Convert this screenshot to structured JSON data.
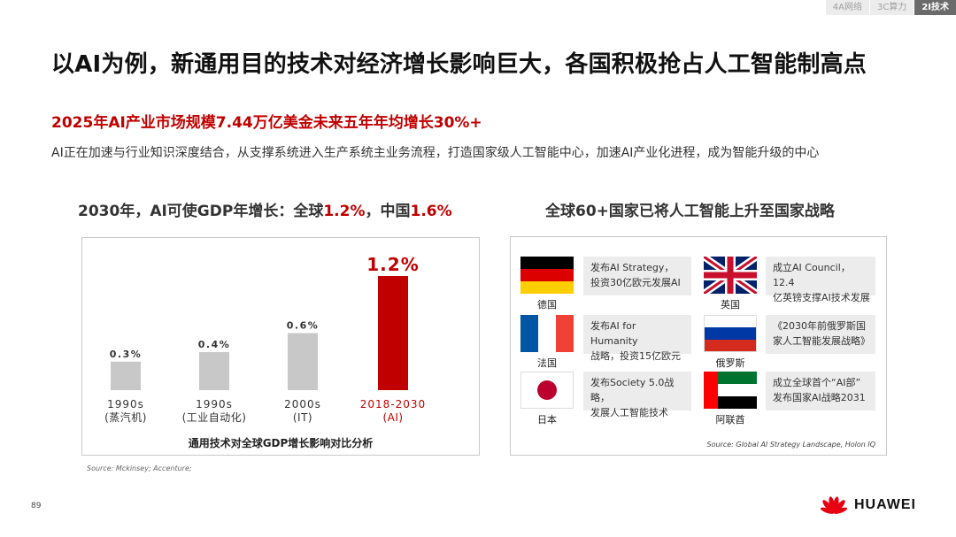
{
  "nav": {
    "tabs": [
      {
        "label": "4A网络"
      },
      {
        "label": "3C算力"
      },
      {
        "label": "2I技术"
      }
    ]
  },
  "title": "以AI为例，新通用目的技术对经济增长影响巨大，各国积极抢占人工智能制高点",
  "subtitle": "2025年AI产业市场规模7.44万亿美金未来五年年均增长30%+",
  "description": "AI正在加速与行业知识深度结合，从支撑系统进入生产系统主业务流程，打造国家级人工智能中心，加速AI产业化进程，成为智能升级的中心",
  "left": {
    "heading_prefix": "2030年，AI可使GDP年增长：全球",
    "heading_global": "1.2%",
    "heading_mid": "，中国",
    "heading_china": "1.6%",
    "caption": "通用技术对全球GDP增长影响对比分析",
    "source": "Source:  Mckinsey; Accenture;"
  },
  "chart_data": {
    "type": "bar",
    "categories": [
      {
        "line1": "1990s",
        "line2": "(蒸汽机)"
      },
      {
        "line1": "1990s",
        "line2": "(工业自动化)"
      },
      {
        "line1": "2000s",
        "line2": "(IT)"
      },
      {
        "line1": "2018-2030",
        "line2": "(AI)"
      }
    ],
    "values": [
      0.3,
      0.4,
      0.6,
      1.2
    ],
    "value_labels": [
      "0.3%",
      "0.4%",
      "0.6%",
      "1.2%"
    ],
    "colors": [
      "#c8c8c8",
      "#c8c8c8",
      "#c8c8c8",
      "#c00000"
    ],
    "highlight_color": "#c00000",
    "ylim": [
      0,
      1.2
    ],
    "grid": false,
    "title": "",
    "xlabel": "",
    "ylabel": ""
  },
  "right": {
    "heading": "全球60+国家已将人工智能上升至国家战略",
    "countries": [
      {
        "name": "德国",
        "line1": "发布AI Strategy，",
        "line2": "投资30亿欧元发展AI"
      },
      {
        "name": "英国",
        "line1": "成立AI Council，12.4",
        "line2": "亿英镑支撑AI技术发展"
      },
      {
        "name": "法国",
        "line1": "发布AI for Humanity",
        "line2": "战略，投资15亿欧元"
      },
      {
        "name": "俄罗斯",
        "line1": "《2030年前俄罗斯国",
        "line2": "家人工智能发展战略》"
      },
      {
        "name": "日本",
        "line1": "发布Society 5.0战略，",
        "line2": "发展人工智能技术"
      },
      {
        "name": "阿联酋",
        "line1": "成立全球首个“AI部”",
        "line2": "发布国家AI战略2031"
      }
    ],
    "source": "Source:  Global AI Strategy Landscape, Holon IQ"
  },
  "page_number": "89",
  "brand": "HUAWEI"
}
